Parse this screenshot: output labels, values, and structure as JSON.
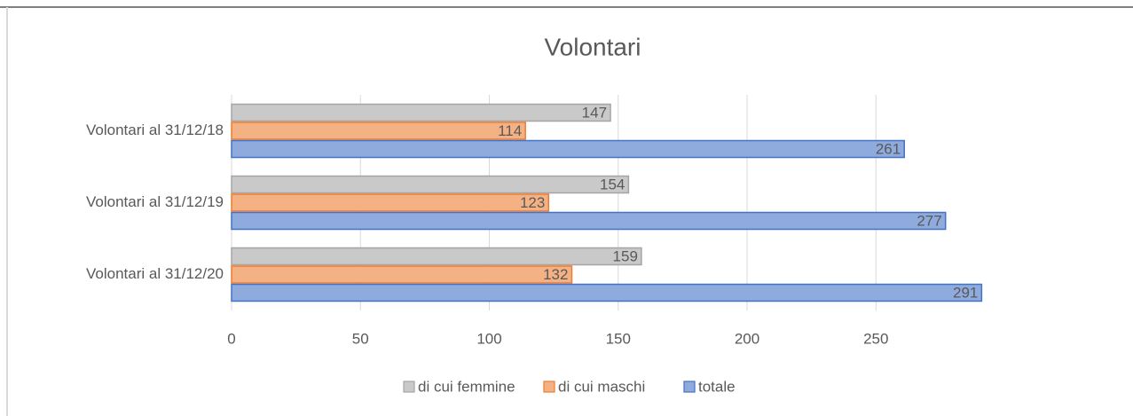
{
  "chart_data": {
    "type": "bar",
    "orientation": "horizontal",
    "title": "Volontari",
    "categories": [
      "Volontari al 31/12/18",
      "Volontari al 31/12/19",
      "Volontari al 31/12/20"
    ],
    "series": [
      {
        "name": "di cui femmine",
        "color": "#c9c9c9",
        "values": [
          147,
          154,
          159
        ]
      },
      {
        "name": "di cui maschi",
        "color": "#f4b183",
        "values": [
          114,
          123,
          132
        ]
      },
      {
        "name": "totale",
        "color": "#8faadc",
        "values": [
          261,
          277,
          291
        ]
      }
    ],
    "xlim": [
      0,
      295
    ],
    "xticks": [
      0,
      50,
      100,
      150,
      200,
      250
    ],
    "grid": true,
    "legend": "bottom"
  }
}
